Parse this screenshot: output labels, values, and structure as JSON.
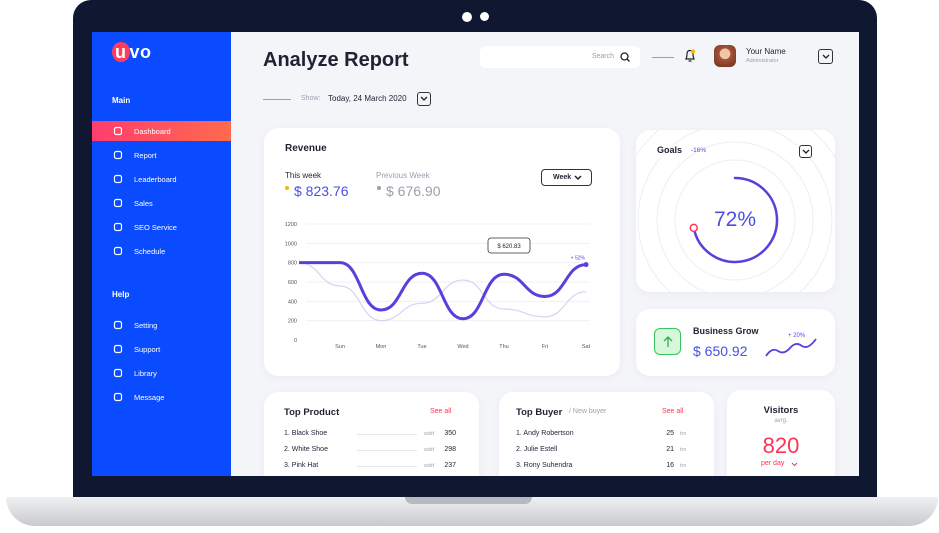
{
  "logo": "uvo",
  "sidebar": {
    "sections": [
      {
        "title": "Main",
        "items": [
          "Dashboard",
          "Report",
          "Leaderboard",
          "Sales",
          "SEO Service",
          "Schedule"
        ]
      },
      {
        "title": "Help",
        "items": [
          "Setting",
          "Support",
          "Library",
          "Message"
        ]
      }
    ]
  },
  "header": {
    "title": "Analyze Report",
    "search_placeholder": "Search",
    "user_name": "Your Name",
    "user_role": "Administrator",
    "show_label": "Show:",
    "date": "Today, 24 March 2020"
  },
  "revenue": {
    "title": "Revenue",
    "this_week_value": "$ 823.76",
    "previous_week_value": "$ 676.90",
    "period": "Week"
  },
  "chart_data": {
    "type": "line",
    "categories": [
      null,
      "Sun",
      "Mon",
      "Tue",
      "Wed",
      "Thu",
      "Fri",
      "Sat"
    ],
    "series": [
      {
        "name": "This week",
        "color": "#5a3fdc",
        "values": [
          800,
          800,
          310,
          690,
          220,
          680,
          450,
          780
        ]
      },
      {
        "name": "Previous Week",
        "color": "#d6d2f2",
        "values": [
          800,
          560,
          200,
          380,
          620,
          320,
          240,
          500
        ]
      }
    ],
    "ylim": [
      0,
      1200
    ],
    "yticks": [
      0,
      200,
      400,
      600,
      800,
      1000,
      1200
    ],
    "grid": true,
    "tooltip": "$ 620.83",
    "change_label": "+ 52%"
  },
  "goals": {
    "title": "Goals",
    "change": "-16%",
    "value": 72,
    "value_label": "72%"
  },
  "business": {
    "title": "Business Grow",
    "value": "$ 650.92",
    "change": "+ 20%"
  },
  "top_product": {
    "title": "Top Product",
    "see_all": "See all",
    "sold_label": "sold",
    "rows": [
      [
        "1. Black Shoe",
        "350"
      ],
      [
        "2. White Shoe",
        "298"
      ],
      [
        "3. Pink Hat",
        "237"
      ]
    ]
  },
  "top_buyer": {
    "title": "Top Buyer",
    "subtitle": "/ New buyer",
    "see_all": "See all",
    "unit": "trx",
    "rows": [
      [
        "1. Andy Robertson",
        "25"
      ],
      [
        "2. Julie Estell",
        "21"
      ],
      [
        "3. Rony Suhendra",
        "16"
      ]
    ]
  },
  "visitors": {
    "title": "Visitors",
    "subtitle": "avrg.",
    "value": "820",
    "period": "per day"
  }
}
